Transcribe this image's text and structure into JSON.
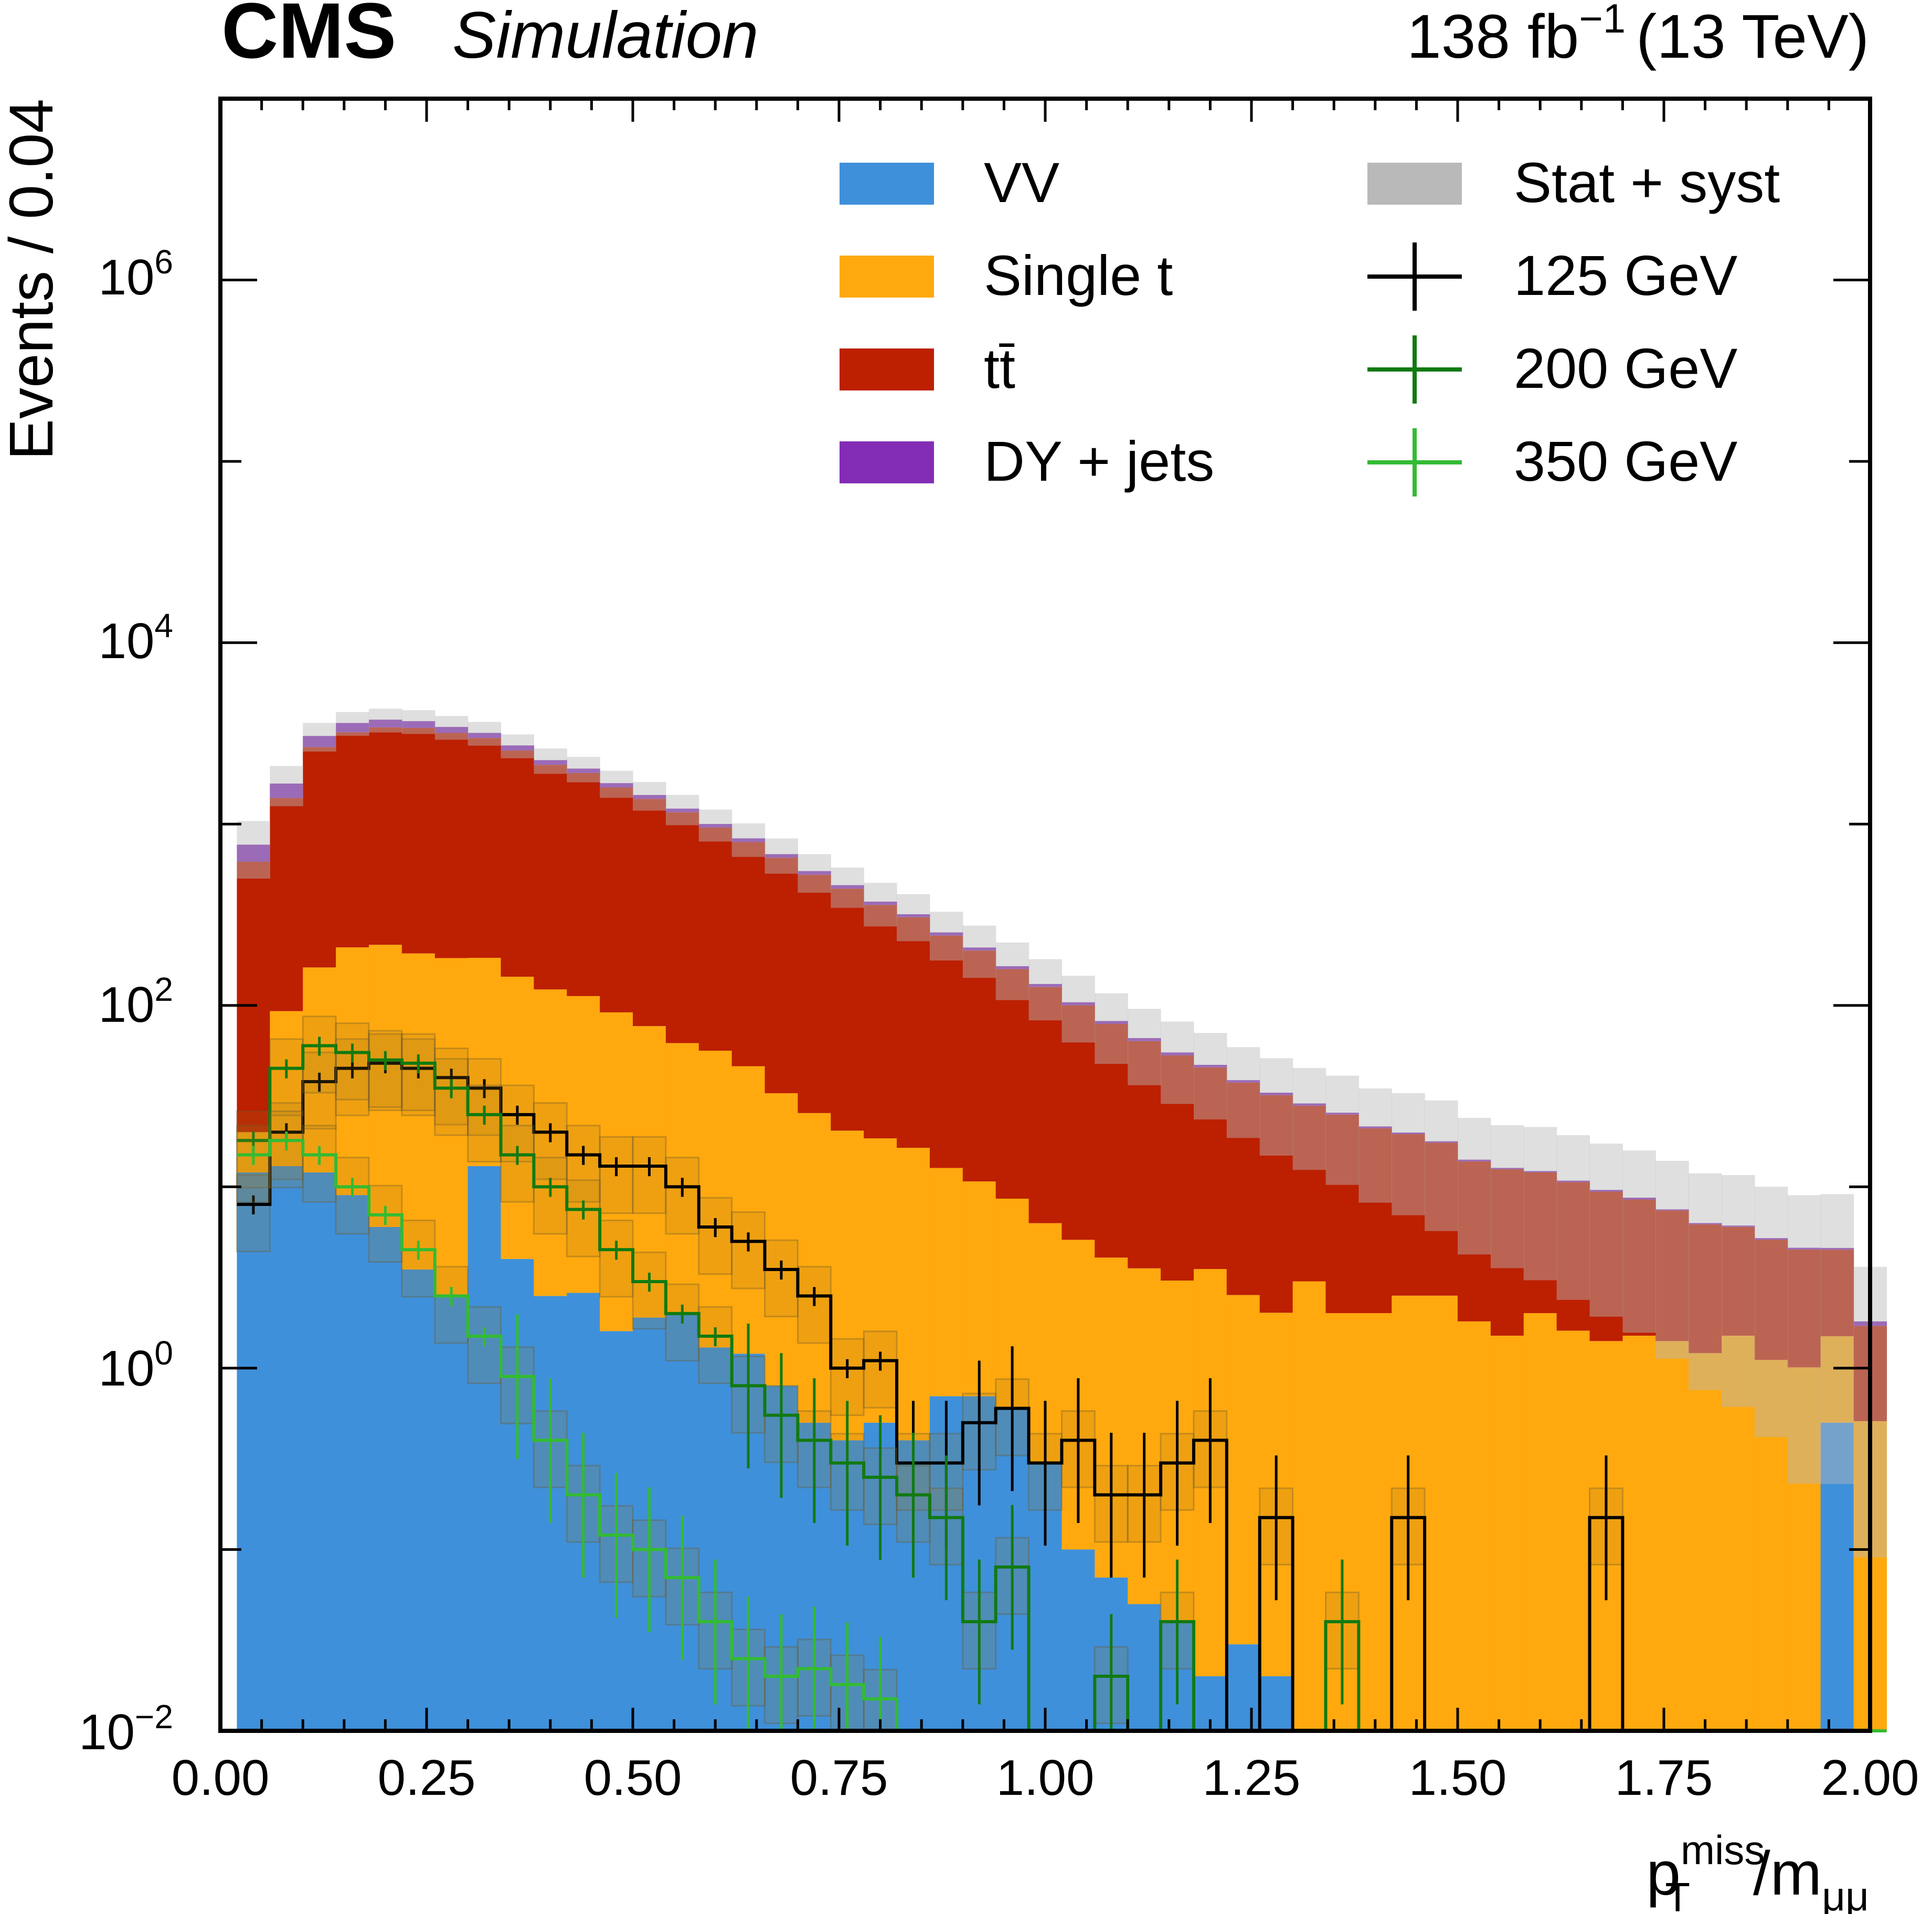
{
  "chart_data": {
    "type": "bar",
    "subtype": "stacked-histogram-log",
    "experiment": "CMS",
    "experiment_tag": "Simulation",
    "lumi": {
      "value": "138 fb",
      "exponent": "−1",
      "energy": "(13 TeV)"
    },
    "xlabel": {
      "main": "p",
      "sub": "T",
      "sup": "miss",
      "slash": "/m",
      "sub2": "μμ"
    },
    "ylabel": "Events / 0.04",
    "xlim": [
      0.0,
      2.0
    ],
    "ylim": [
      0.01,
      10000000
    ],
    "yscale": "log",
    "bin_width": 0.04,
    "x_start": 0.02,
    "xticks": [
      "0.00",
      "0.25",
      "0.50",
      "0.75",
      "1.00",
      "1.25",
      "1.50",
      "1.75",
      "2.00"
    ],
    "yticks": [
      {
        "base": "10",
        "exp": "−2",
        "value": 0.01
      },
      {
        "base": "10",
        "exp": "0",
        "value": 1
      },
      {
        "base": "10",
        "exp": "2",
        "value": 100
      },
      {
        "base": "10",
        "exp": "4",
        "value": 10000
      },
      {
        "base": "10",
        "exp": "6",
        "value": 1000000
      }
    ],
    "colors": {
      "VV": "#3f90da",
      "Single t": "#ffa90e",
      "tt": "#bd1f01",
      "DY + jets": "#832db6",
      "band": "#b9b9b9",
      "s125": "#000000",
      "s200": "#117a11",
      "s350": "#33bb33"
    },
    "legend": {
      "backgrounds": [
        {
          "key": "VV",
          "label": "VV"
        },
        {
          "key": "Single t",
          "label": "Single t"
        },
        {
          "key": "tt",
          "label": "tt̄"
        },
        {
          "key": "DY + jets",
          "label": "DY + jets"
        }
      ],
      "others": [
        {
          "key": "band",
          "label": "Stat + syst"
        },
        {
          "key": "s125",
          "label": "125 GeV"
        },
        {
          "key": "s200",
          "label": "200 GeV"
        },
        {
          "key": "s350",
          "label": "350 GeV"
        }
      ]
    },
    "stack": {
      "VV": [
        12,
        13,
        12,
        9,
        6,
        3.5,
        2.5,
        13,
        4,
        2.5,
        2.6,
        1.6,
        1.9,
        2.0,
        1.3,
        1.2,
        0.8,
        0.5,
        0.4,
        0.5,
        0.4,
        0.7,
        0.7,
        0.6,
        0.3,
        0.1,
        0.07,
        0.05,
        0.04,
        0.02,
        0.03,
        0.02,
        0.01,
        0.01,
        0.01,
        0.01,
        0.01,
        0.01,
        0.01,
        0.01,
        0.01,
        0.01,
        0.01,
        0.01,
        0.01,
        0.01,
        0.01,
        0.01,
        0.5,
        0.01
      ],
      "Single t": [
        8,
        80,
        150,
        200,
        210,
        190,
        180,
        170,
        140,
        120,
        110,
        90,
        75,
        60,
        55,
        45,
        32,
        25,
        20,
        18,
        16,
        12,
        10,
        8,
        6,
        5,
        4,
        3.5,
        3.0,
        3.5,
        2.5,
        2.0,
        3.0,
        2.0,
        2.0,
        2.5,
        2.5,
        1.8,
        1.5,
        2.0,
        1.6,
        1.4,
        1.5,
        1.4,
        1.2,
        1.5,
        1.1,
        1.0,
        1.0,
        0.5
      ],
      "tt": [
        600,
        1300,
        2500,
        3000,
        3200,
        3200,
        3000,
        2800,
        2400,
        2000,
        1800,
        1500,
        1300,
        1100,
        900,
        750,
        620,
        500,
        420,
        340,
        290,
        230,
        190,
        150,
        120,
        95,
        75,
        60,
        50,
        42,
        35,
        30,
        25,
        23,
        19,
        17,
        15,
        12,
        11,
        10,
        9,
        8,
        7,
        6,
        5,
        4.5,
        4.0,
        3.5,
        3.0,
        1.2
      ],
      "DY + jets": [
        150,
        280,
        400,
        400,
        350,
        300,
        250,
        200,
        170,
        130,
        110,
        90,
        70,
        55,
        45,
        38,
        30,
        25,
        20,
        15,
        12,
        10,
        8,
        6,
        5,
        4,
        3,
        2.5,
        2,
        1.5,
        1.2,
        1,
        0.8,
        0.6,
        0.5,
        0.4,
        0.3,
        0.3,
        0.2,
        0.2,
        0.2,
        0.2,
        0.2,
        0.1,
        0.1,
        0.1,
        0.1,
        0.1,
        0.1,
        0.1
      ],
      "band_rel": [
        0.35,
        0.25,
        0.18,
        0.15,
        0.15,
        0.15,
        0.15,
        0.15,
        0.15,
        0.16,
        0.16,
        0.17,
        0.18,
        0.19,
        0.2,
        0.21,
        0.22,
        0.24,
        0.25,
        0.27,
        0.29,
        0.3,
        0.32,
        0.35,
        0.37,
        0.4,
        0.42,
        0.45,
        0.48,
        0.5,
        0.52,
        0.55,
        0.57,
        0.6,
        0.62,
        0.65,
        0.68,
        0.7,
        0.72,
        0.75,
        0.78,
        0.8,
        0.82,
        0.85,
        0.88,
        0.9,
        0.92,
        0.95,
        0.98,
        1.0
      ]
    },
    "series": [
      {
        "name": "125 GeV",
        "key": "s125",
        "values": [
          8,
          20,
          38,
          45,
          48,
          45,
          40,
          35,
          25,
          20,
          15,
          13,
          13,
          10,
          6,
          5,
          3.5,
          2.5,
          1.0,
          1.1,
          0.3,
          0.3,
          0.5,
          0.6,
          0.3,
          0.4,
          0.2,
          0.2,
          0.3,
          0.4,
          0.01,
          0.15,
          0.01,
          0.01,
          0.01,
          0.15,
          0.01,
          0.01,
          0.01,
          0.01,
          0.01,
          0.15,
          0.01,
          0.01,
          0.01,
          0.01,
          0.01,
          0.01,
          0.01,
          0.01
        ]
      },
      {
        "name": "200 GeV",
        "key": "s200",
        "values": [
          18,
          45,
          60,
          55,
          50,
          48,
          35,
          25,
          15,
          10,
          7.5,
          4.5,
          3.0,
          2.0,
          1.5,
          0.8,
          0.55,
          0.4,
          0.3,
          0.25,
          0.2,
          0.15,
          0.04,
          0.08,
          0.01,
          0.01,
          0.02,
          0.01,
          0.04,
          0.01,
          0.01,
          0.01,
          0.01,
          0.04,
          0.01,
          0.01,
          0.01,
          0.01,
          0.01,
          0.01,
          0.01,
          0.01,
          0.01,
          0.01,
          0.01,
          0.01,
          0.01,
          0.01,
          0.01,
          0.01
        ]
      },
      {
        "name": "350 GeV",
        "key": "s350",
        "values": [
          15,
          18,
          15,
          10,
          7,
          4.5,
          2.5,
          1.5,
          0.9,
          0.4,
          0.2,
          0.12,
          0.1,
          0.07,
          0.04,
          0.025,
          0.02,
          0.022,
          0.018,
          0.015,
          0.01,
          0.01,
          0.01,
          0.01,
          0.01,
          0.01,
          0.01,
          0.01,
          0.01,
          0.01,
          0.01,
          0.01,
          0.01,
          0.01,
          0.01,
          0.01,
          0.01,
          0.01,
          0.01,
          0.01,
          0.01,
          0.01,
          0.01,
          0.01,
          0.01,
          0.01,
          0.01,
          0.01,
          0.01,
          0.01
        ]
      }
    ]
  }
}
